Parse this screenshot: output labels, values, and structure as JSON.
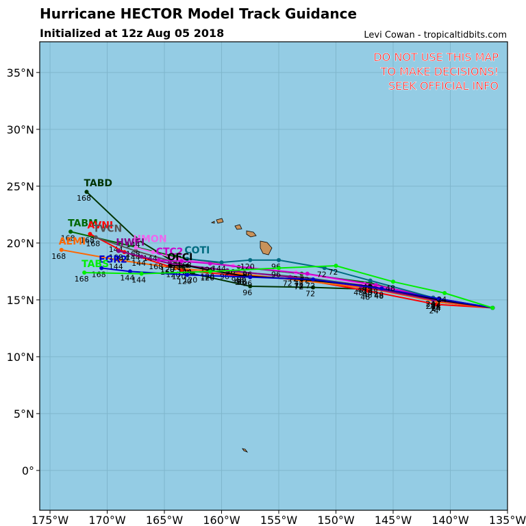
{
  "chart_data": {
    "type": "track-map",
    "title": "Hurricane HECTOR Model Track Guidance",
    "subtitle": "Initialized at 12z Aug 05 2018",
    "credit": "Levi Cowan - tropicaltidbits.com",
    "warning": [
      "DO NOT USE THIS MAP",
      "TO MAKE DECISIONS!",
      "SEEK OFFICIAL INFO"
    ],
    "xlim": [
      -175.9,
      -135
    ],
    "ylim": [
      -3.5,
      37.7
    ],
    "xticks": [
      {
        "value": -175,
        "label": "175°W"
      },
      {
        "value": -170,
        "label": "170°W"
      },
      {
        "value": -165,
        "label": "165°W"
      },
      {
        "value": -160,
        "label": "160°W"
      },
      {
        "value": -155,
        "label": "155°W"
      },
      {
        "value": -150,
        "label": "150°W"
      },
      {
        "value": -145,
        "label": "145°W"
      },
      {
        "value": -140,
        "label": "140°W"
      },
      {
        "value": -135,
        "label": "135°W"
      }
    ],
    "yticks": [
      {
        "value": 0,
        "label": "0°"
      },
      {
        "value": 5,
        "label": "5°N"
      },
      {
        "value": 10,
        "label": "10°N"
      },
      {
        "value": 15,
        "label": "15°N"
      },
      {
        "value": 20,
        "label": "20°N"
      },
      {
        "value": 25,
        "label": "25°N"
      },
      {
        "value": 30,
        "label": "30°N"
      },
      {
        "value": 35,
        "label": "35°N"
      }
    ],
    "grid": true,
    "hours": [
      null,
      24,
      48,
      72,
      96,
      120,
      144,
      168
    ],
    "series": [
      {
        "name": "TABD",
        "color": "#003300",
        "lon": [
          -136.3,
          -141,
          -146,
          -152,
          -157.5,
          -162.5,
          -167.5,
          -171.8
        ],
        "lat": [
          14.3,
          14.8,
          15.9,
          16.1,
          16.2,
          17.3,
          20.4,
          24.5
        ]
      },
      {
        "name": "TABM",
        "color": "#006600",
        "lon": [
          -136.3,
          -141,
          -147,
          -153,
          -158.5,
          -164,
          -169,
          -173.2
        ],
        "lat": [
          14.3,
          14.9,
          16.5,
          17.3,
          17.9,
          18.8,
          20.0,
          21.0
        ]
      },
      {
        "name": "AVNI",
        "color": "#ff0000",
        "lon": [
          -136.3,
          -141.2,
          -147.2,
          -153,
          -158.2,
          -163.5,
          -168.5,
          -171.5
        ],
        "lat": [
          14.3,
          14.6,
          15.8,
          16.8,
          17.1,
          17.6,
          19.2,
          20.8
        ]
      },
      {
        "name": "TVCN",
        "color": "#555555",
        "lon": [
          -136.3,
          -141,
          -147,
          -153,
          -158,
          -163,
          -167.5,
          -171
        ],
        "lat": [
          14.3,
          15.0,
          16.2,
          17.0,
          17.4,
          18.0,
          19.3,
          20.5
        ]
      },
      {
        "name": "AEMI",
        "color": "#ff6600",
        "lon": [
          -136.3,
          -141,
          -147,
          -153,
          -158.5,
          -164,
          -169,
          -174
        ],
        "lat": [
          14.3,
          14.8,
          16.0,
          16.7,
          17.3,
          17.8,
          18.5,
          19.4
        ]
      },
      {
        "name": "HMON",
        "color": "#ee66ee",
        "lon": [
          -136.3,
          -141.5,
          -147.5,
          -153.5,
          -159,
          -163.8,
          -166,
          -167.5
        ],
        "lat": [
          14.3,
          15.2,
          16.4,
          17.4,
          18.0,
          18.6,
          19.2,
          19.6
        ]
      },
      {
        "name": "HWFI",
        "color": "#880088",
        "lon": [
          -136.3,
          -141.5,
          -147.8,
          -154,
          -159.5,
          -164.5,
          -167,
          -169
        ],
        "lat": [
          14.3,
          15.0,
          16.2,
          17.0,
          17.6,
          18.2,
          18.8,
          19.3
        ]
      },
      {
        "name": "CTC2",
        "color": "#cc00cc",
        "lon": [
          -136.3,
          -141,
          -146.5,
          -152.5,
          -157.5,
          -161,
          -163.5,
          -165.5
        ],
        "lat": [
          14.3,
          15.1,
          16.3,
          17.3,
          17.8,
          18.2,
          18.4,
          18.5
        ]
      },
      {
        "name": "COTI",
        "color": "#006b80",
        "lon": [
          -136.3,
          -141.5,
          -147,
          -151,
          -155,
          -157.5,
          -160,
          -163
        ],
        "lat": [
          14.3,
          15.2,
          16.7,
          17.8,
          18.5,
          18.5,
          18.3,
          18.6
        ]
      },
      {
        "name": "OFCI",
        "color": "#000000",
        "lon": [
          -136.3,
          -141,
          -147,
          -153,
          -158,
          -161,
          -163,
          -164.5
        ],
        "lat": [
          14.3,
          15.0,
          16.2,
          16.8,
          17.1,
          17.6,
          18.0,
          18.0
        ]
      },
      {
        "name": "EGR2",
        "color": "#0000cc",
        "lon": [
          -136.3,
          -141,
          -146,
          -152,
          -157.5,
          -163,
          -168,
          -170.5
        ],
        "lat": [
          14.3,
          15.1,
          16.0,
          16.8,
          17.0,
          17.2,
          17.5,
          17.8
        ]
      },
      {
        "name": "TABS",
        "color": "#00ee00",
        "lon": [
          -136.3,
          -140.5,
          -145,
          -150,
          -155,
          -161,
          -167,
          -172
        ],
        "lat": [
          14.3,
          15.6,
          16.6,
          18.0,
          17.8,
          17.5,
          17.3,
          17.4
        ]
      }
    ]
  }
}
